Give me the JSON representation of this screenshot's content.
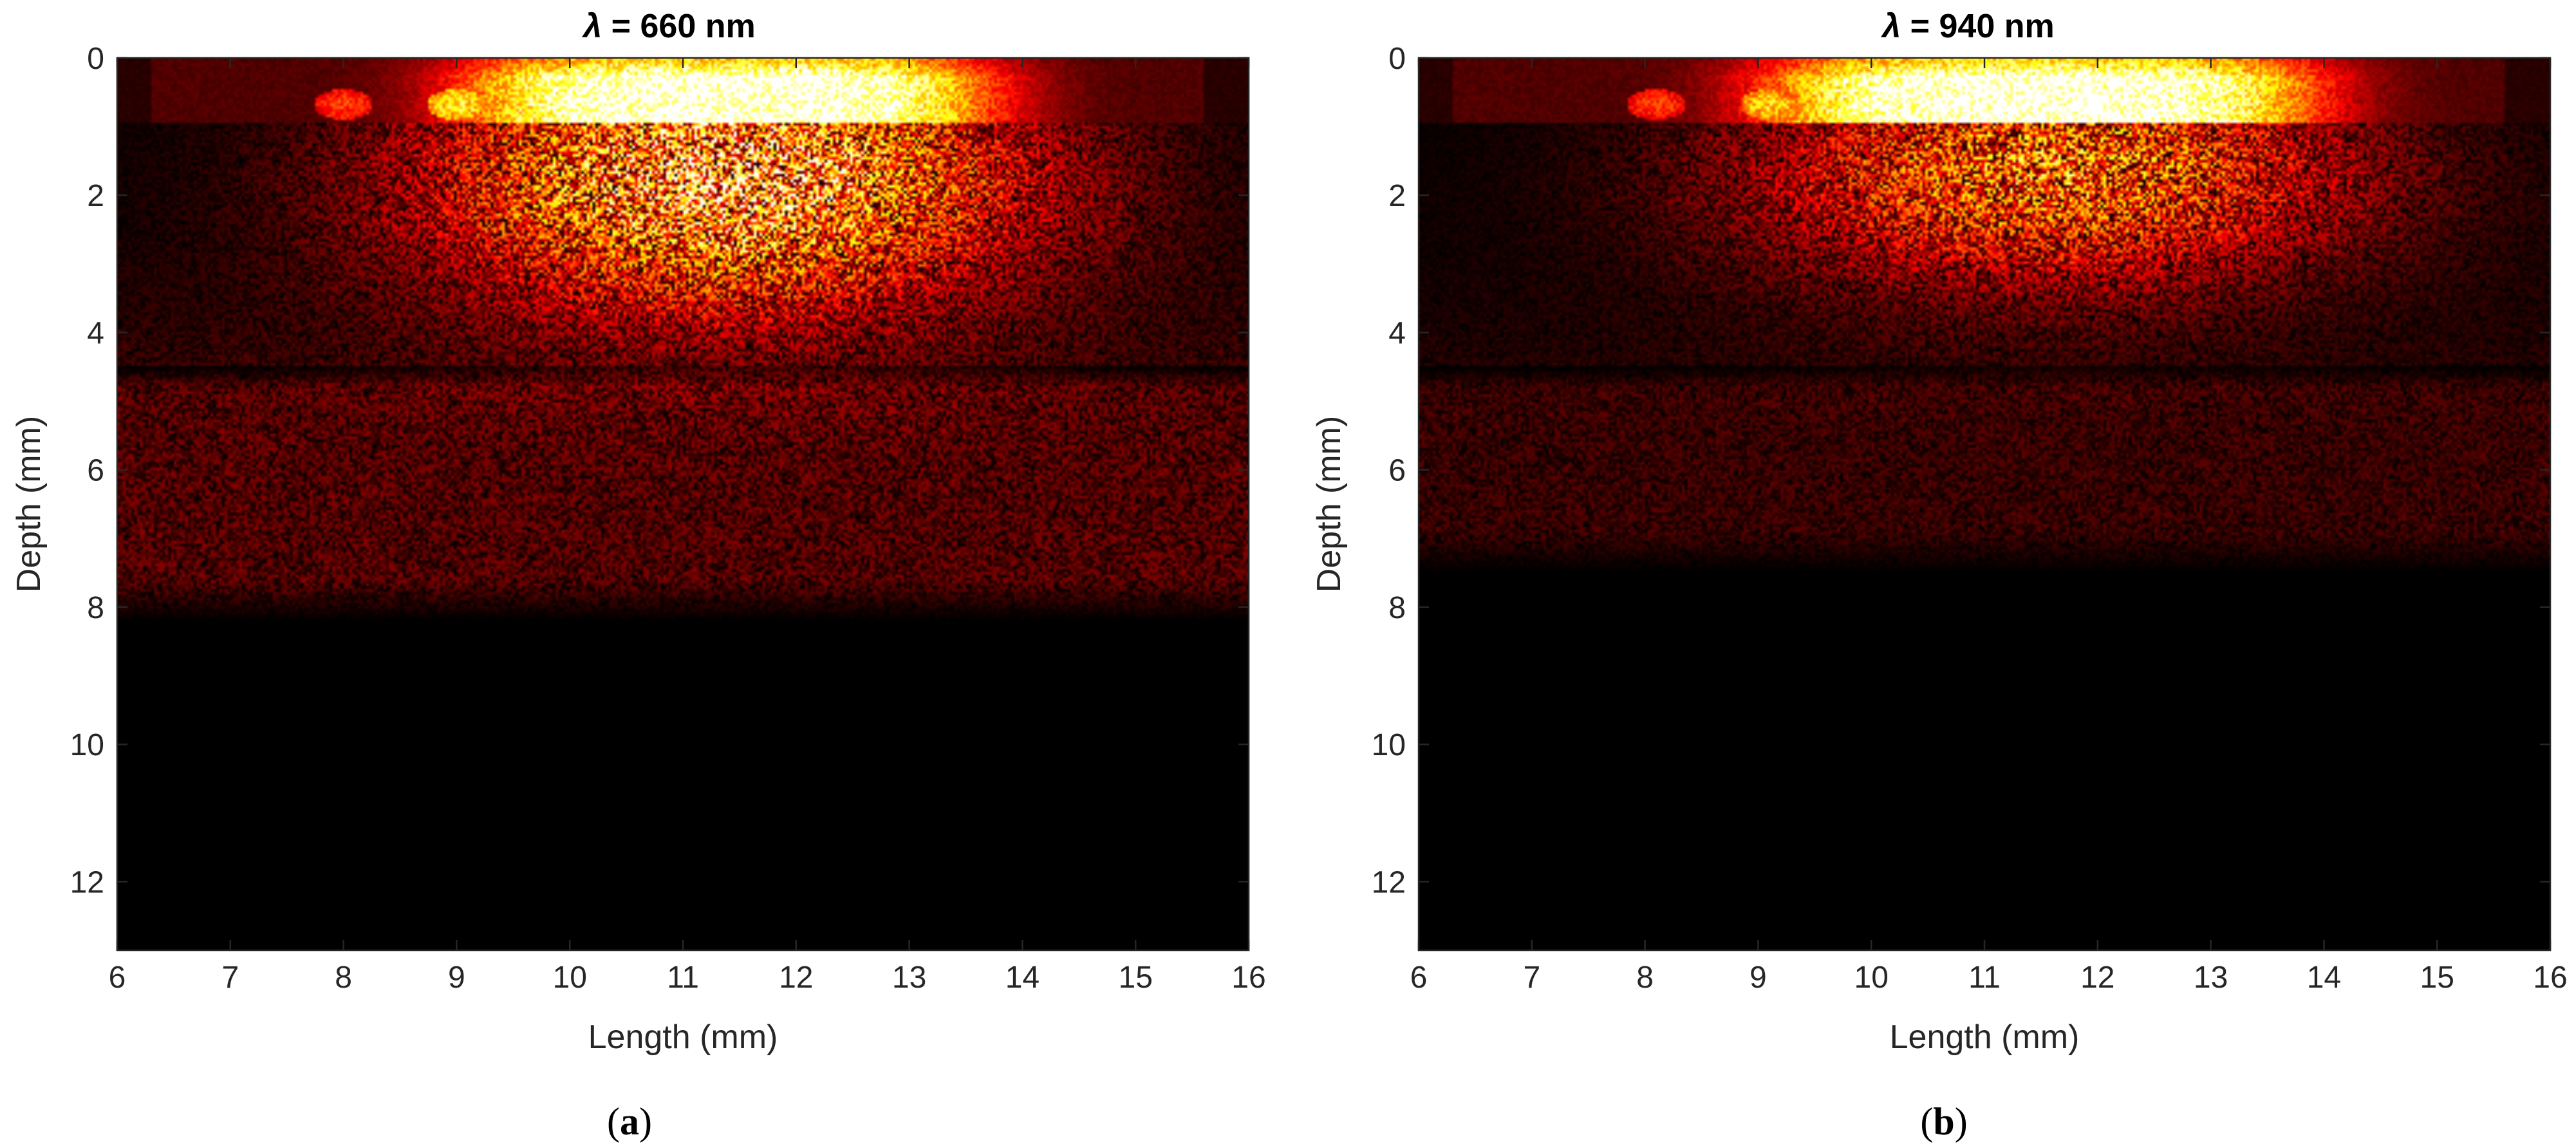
{
  "chart_data": [
    {
      "type": "heatmap",
      "title_symbol": "λ",
      "title_rest": " = 660 nm",
      "xlabel": "Length (mm)",
      "ylabel": "Depth (mm)",
      "xlim": [
        6,
        16
      ],
      "ylim": [
        13,
        0
      ],
      "y_direction": "reversed (0 at top)",
      "colormap": "hot",
      "xticks": [
        "6",
        "7",
        "8",
        "9",
        "10",
        "11",
        "12",
        "13",
        "14",
        "15",
        "16"
      ],
      "yticks": [
        "0",
        "2",
        "4",
        "6",
        "8",
        "10",
        "12"
      ],
      "panel_label_pre": "(",
      "panel_label_letter": "a",
      "panel_label_post": ")",
      "surface_layer_depth": [
        0,
        0.95
      ],
      "surface_band_center_x": 11.4,
      "surface_band_width": 5.0,
      "bright_band_range_x": [
        10,
        12.9
      ],
      "spots": [
        {
          "x": 8.0,
          "depth": 0.68,
          "intensity": 0.45
        },
        {
          "x": 9.0,
          "depth": 0.68,
          "intensity": 0.75
        },
        {
          "x": 10.0,
          "depth": 0.68,
          "intensity": 1.0
        },
        {
          "x": 11.0,
          "depth": 0.68,
          "intensity": 1.0
        },
        {
          "x": 12.0,
          "depth": 0.68,
          "intensity": 1.0
        },
        {
          "x": 12.7,
          "depth": 0.68,
          "intensity": 1.0
        }
      ],
      "scatter_glow": {
        "x": 11.4,
        "depth": 1.7,
        "sigma_x": 1.9,
        "sigma_depth": 1.4,
        "intensity": 0.72
      },
      "deep_background_depth": [
        4.5,
        8.2
      ],
      "deep_background_intensity": 0.13
    },
    {
      "type": "heatmap",
      "title_symbol": "λ",
      "title_rest": " = 940 nm",
      "xlabel": "Length (mm)",
      "ylabel": "Depth (mm)",
      "xlim": [
        6,
        16
      ],
      "ylim": [
        13,
        0
      ],
      "y_direction": "reversed (0 at top)",
      "colormap": "hot",
      "xticks": [
        "6",
        "7",
        "8",
        "9",
        "10",
        "11",
        "12",
        "13",
        "14",
        "15",
        "16"
      ],
      "yticks": [
        "0",
        "2",
        "4",
        "6",
        "8",
        "10",
        "12"
      ],
      "panel_label_pre": "(",
      "panel_label_letter": "b",
      "panel_label_post": ")",
      "surface_layer_depth": [
        0,
        0.95
      ],
      "surface_band_center_x": 11.5,
      "surface_band_width": 5.2,
      "bright_band_range_x": [
        11.1,
        12.2
      ],
      "spots": [
        {
          "x": 8.1,
          "depth": 0.68,
          "intensity": 0.45
        },
        {
          "x": 9.1,
          "depth": 0.68,
          "intensity": 0.7
        },
        {
          "x": 10.0,
          "depth": 0.68,
          "intensity": 1.0
        },
        {
          "x": 11.05,
          "depth": 0.68,
          "intensity": 1.0
        },
        {
          "x": 12.0,
          "depth": 0.68,
          "intensity": 1.0
        }
      ],
      "scatter_glow": {
        "x": 11.6,
        "depth": 1.6,
        "sigma_x": 1.9,
        "sigma_depth": 1.2,
        "intensity": 0.55
      },
      "deep_background_depth": [
        4.5,
        7.5
      ],
      "deep_background_intensity": 0.09
    }
  ]
}
